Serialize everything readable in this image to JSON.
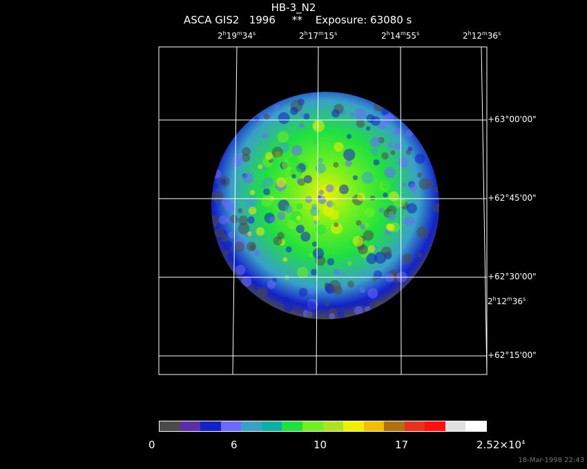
{
  "header": {
    "object": "HB-3_N2",
    "info": "ASCA GIS2   1996     **    Exposure: 63080 s"
  },
  "ra_labels": [
    {
      "h": "2",
      "m": "19",
      "s": "34"
    },
    {
      "h": "2",
      "m": "17",
      "s": "15"
    },
    {
      "h": "2",
      "m": "14",
      "s": "55"
    },
    {
      "h": "2",
      "m": "12",
      "s": "36"
    }
  ],
  "ra_side_label": {
    "h": "2",
    "m": "12",
    "s": "36"
  },
  "dec_labels": [
    "+63°00'00\"",
    "+62°45'00\"",
    "+62°30'00\"",
    "+62°15'00\""
  ],
  "colorbar": {
    "colors": [
      "#4a4a4a",
      "#5a2ea8",
      "#1420c8",
      "#6a6aff",
      "#3aa0c8",
      "#10b0a0",
      "#20e040",
      "#70f020",
      "#b0e020",
      "#f0f000",
      "#f0c000",
      "#b07010",
      "#e83020",
      "#ff1010",
      "#e0e0e0",
      "#ffffff"
    ],
    "labels": [
      "0",
      "6",
      "10",
      "17",
      "2.52×10"
    ],
    "label_exp": "4"
  },
  "stamp": "18-Mar-1998 22:43"
}
